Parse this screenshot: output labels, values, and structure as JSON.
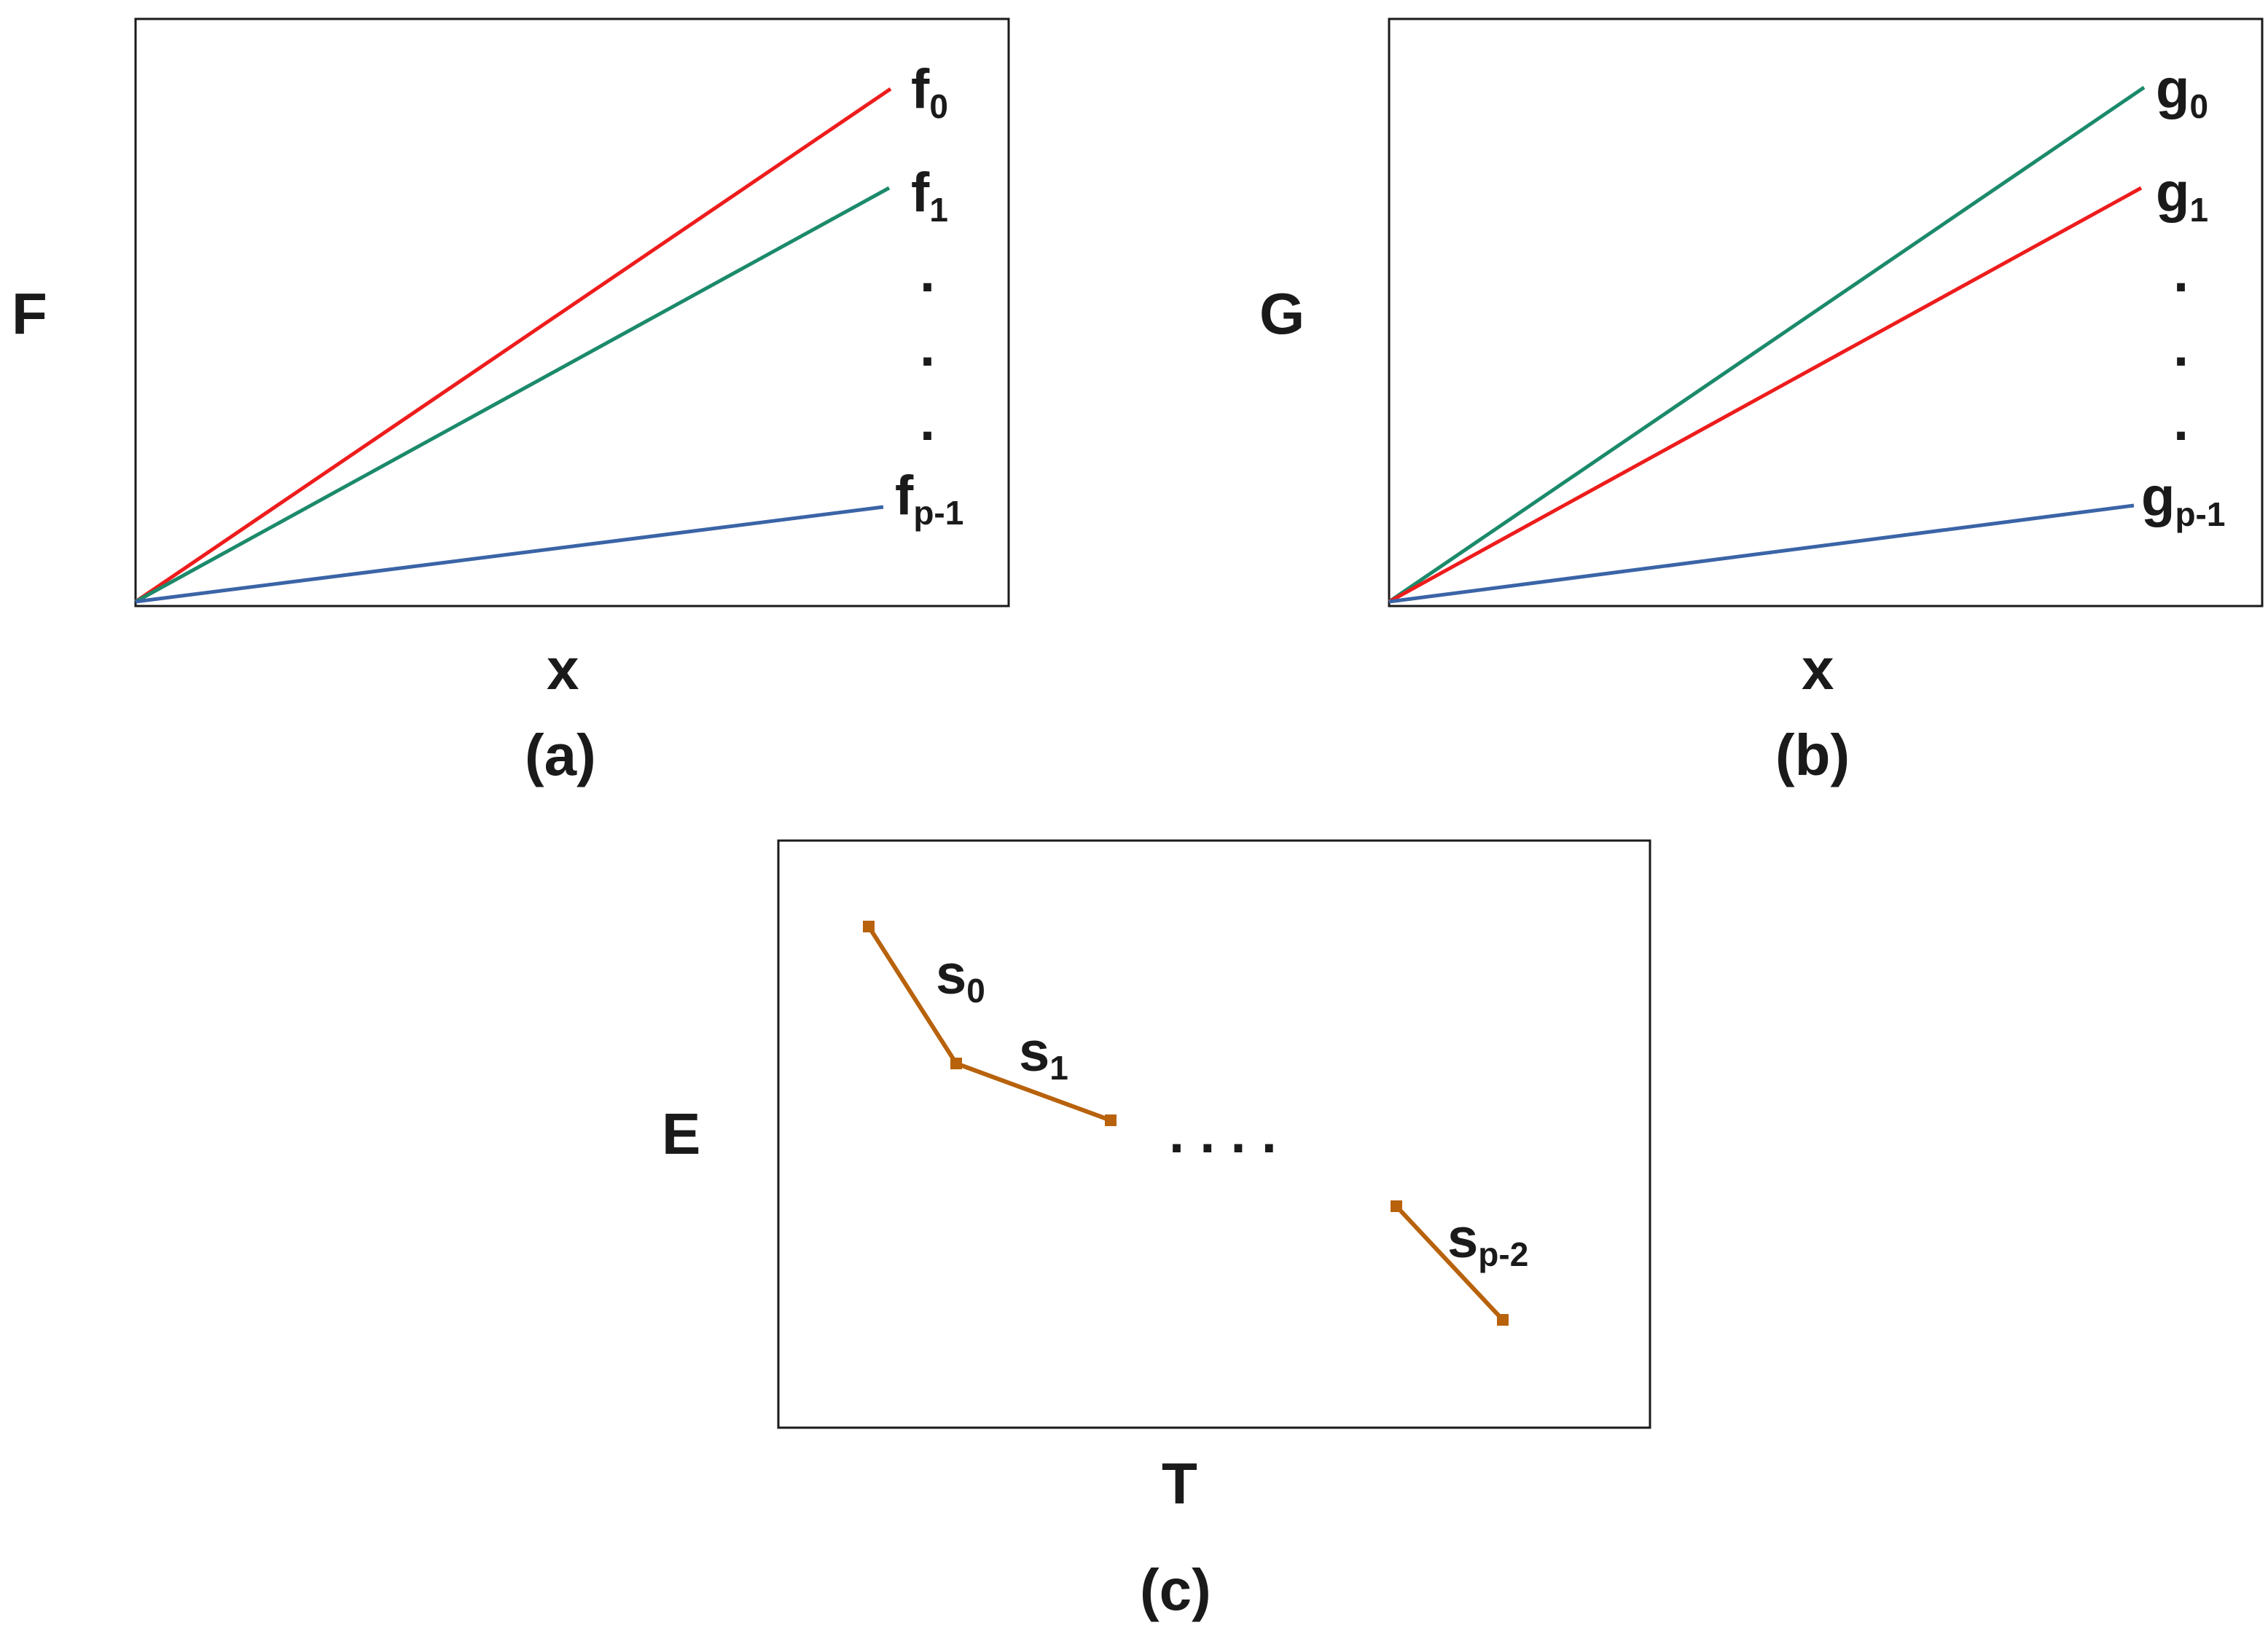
{
  "colors": {
    "red": "#ee1c1c",
    "green": "#1b8a6b",
    "blue": "#3a64a6",
    "brown": "#b8620c",
    "frame": "#1a1a1a"
  },
  "panel_a": {
    "ylabel": "F",
    "xlabel": "x",
    "caption": "(a)",
    "lines": [
      {
        "base": "f",
        "sub": "0",
        "color": "red"
      },
      {
        "base": "f",
        "sub": "1",
        "color": "green"
      },
      {
        "base": "f",
        "sub": "p-1",
        "color": "blue"
      }
    ],
    "ellipsis": ".",
    "relative_slopes": [
      1.0,
      0.81,
      0.19
    ]
  },
  "panel_b": {
    "ylabel": "G",
    "xlabel": "x",
    "caption": "(b)",
    "lines": [
      {
        "base": "g",
        "sub": "0",
        "color": "green"
      },
      {
        "base": "g",
        "sub": "1",
        "color": "red"
      },
      {
        "base": "g",
        "sub": "p-1",
        "color": "blue"
      }
    ],
    "ellipsis": ".",
    "relative_slopes": [
      1.0,
      0.81,
      0.19
    ]
  },
  "panel_c": {
    "ylabel": "E",
    "xlabel": "T",
    "caption": "(c)",
    "segments": [
      {
        "base": "s",
        "sub": "0",
        "color": "brown"
      },
      {
        "base": "s",
        "sub": "1",
        "color": "brown"
      },
      {
        "base": "s",
        "sub": "p-2",
        "color": "brown"
      }
    ],
    "ellipsis": ". . . ."
  }
}
